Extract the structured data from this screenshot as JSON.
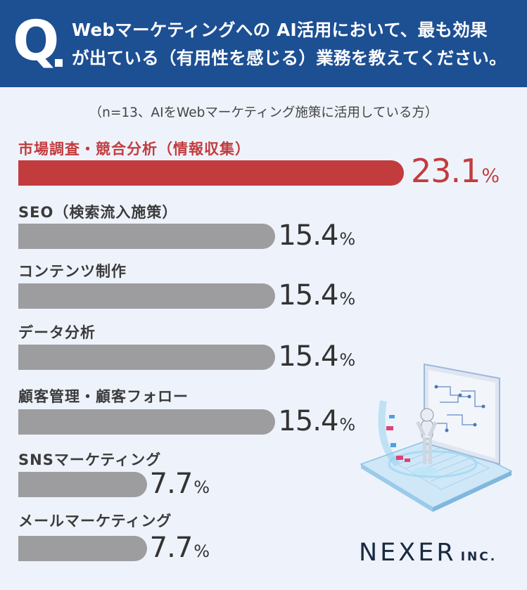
{
  "header": {
    "q_letter": "Q",
    "question_line1": "Webマーケティングへの AI活用において、最も効果",
    "question_line2": "が出ている（有用性を感じる）業務を教えてください。"
  },
  "sample_note": "（n=13、AIをWebマーケティング施策に活用している方）",
  "chart_data": {
    "type": "bar",
    "orientation": "horizontal",
    "unit": "%",
    "categories": [
      "市場調査・競合分析（情報収集）",
      "SEO（検索流入施策）",
      "コンテンツ制作",
      "データ分析",
      "顧客管理・顧客フォロー",
      "SNSマーケティング",
      "メールマーケティング"
    ],
    "values": [
      23.1,
      15.4,
      15.4,
      15.4,
      15.4,
      7.7,
      7.7
    ],
    "value_labels": [
      "23.1",
      "15.4",
      "15.4",
      "15.4",
      "15.4",
      "7.7",
      "7.7"
    ],
    "highlight_index": 0,
    "colors": {
      "highlight": "#c23c3e",
      "default": "#9d9da0"
    }
  },
  "logo": {
    "main": "NEXER",
    "sub": "INC."
  },
  "illustration_icon": "laptop-robot-illustration"
}
